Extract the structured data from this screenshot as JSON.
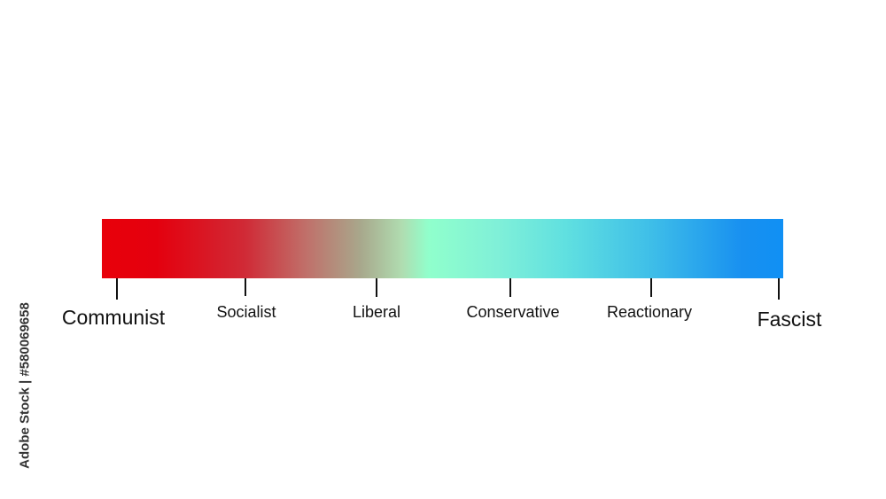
{
  "scale": {
    "gradient_colors": [
      "#e8000a",
      "#d02a36",
      "#a8a88c",
      "#90ffcc",
      "#60e0e0",
      "#1090f4"
    ],
    "labels": [
      {
        "text": "Communist",
        "major": true
      },
      {
        "text": "Socialist",
        "major": false
      },
      {
        "text": "Liberal",
        "major": false
      },
      {
        "text": "Conservative",
        "major": false
      },
      {
        "text": "Reactionary",
        "major": false
      },
      {
        "text": "Fascist",
        "major": true
      }
    ]
  },
  "watermark": "Adobe Stock | #580069658"
}
